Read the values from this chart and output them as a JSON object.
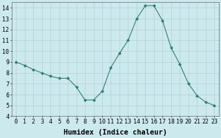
{
  "x": [
    0,
    1,
    2,
    3,
    4,
    5,
    6,
    7,
    8,
    9,
    10,
    11,
    12,
    13,
    14,
    15,
    16,
    17,
    18,
    19,
    20,
    21,
    22,
    23
  ],
  "y": [
    9.0,
    8.7,
    8.3,
    8.0,
    7.7,
    7.5,
    7.5,
    6.7,
    5.5,
    5.5,
    6.3,
    8.5,
    9.8,
    11.0,
    13.0,
    14.2,
    14.2,
    12.8,
    10.3,
    8.8,
    7.0,
    5.9,
    5.3,
    5.0
  ],
  "xlabel": "Humidex (Indice chaleur)",
  "xlim": [
    -0.5,
    23.5
  ],
  "ylim": [
    4,
    14.5
  ],
  "yticks": [
    4,
    5,
    6,
    7,
    8,
    9,
    10,
    11,
    12,
    13,
    14
  ],
  "xtick_labels": [
    "0",
    "1",
    "2",
    "3",
    "4",
    "5",
    "6",
    "7",
    "8",
    "9",
    "10",
    "11",
    "12",
    "13",
    "14",
    "15",
    "16",
    "17",
    "18",
    "19",
    "20",
    "21",
    "22",
    "23"
  ],
  "line_color": "#2d7d6e",
  "marker": "D",
  "marker_size": 2,
  "bg_color": "#cce9ee",
  "grid_color": "#b0ced4",
  "xlabel_fontsize": 7.5,
  "tick_fontsize": 6
}
